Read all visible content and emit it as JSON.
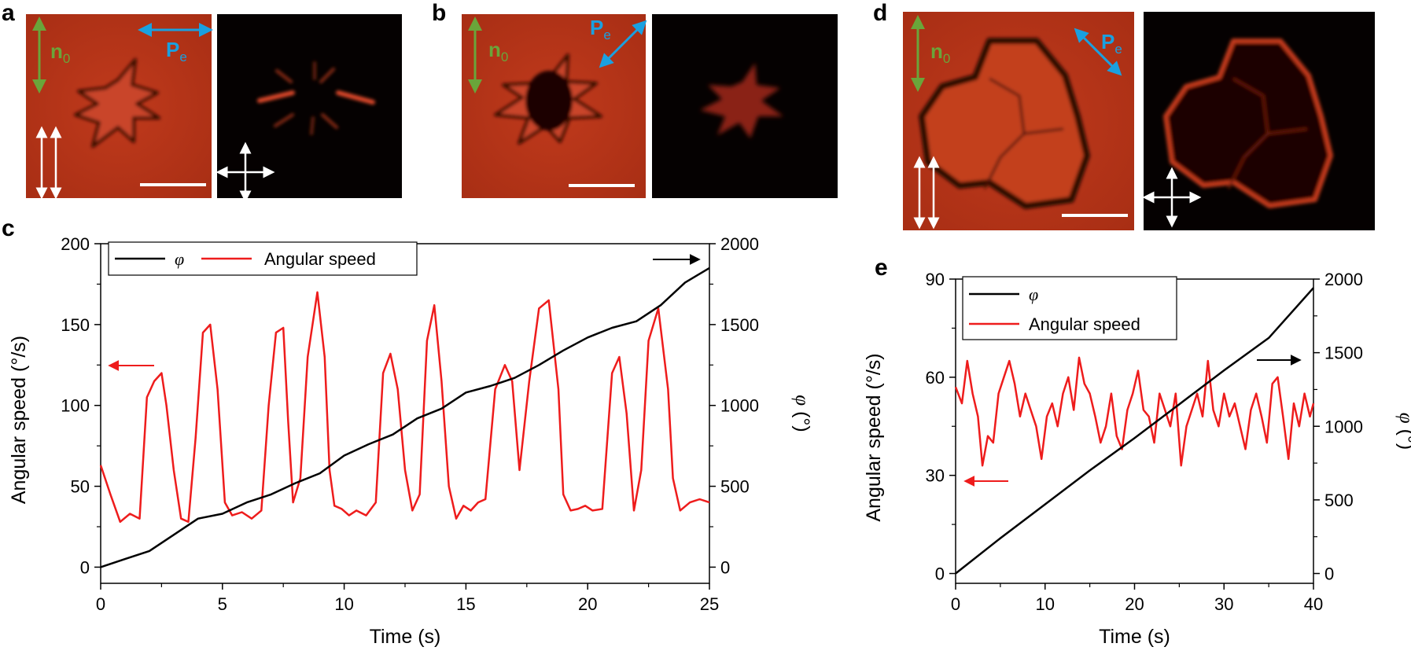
{
  "panels": {
    "a": "a",
    "b": "b",
    "c": "c",
    "d": "d",
    "e": "e"
  },
  "micrographs": {
    "n0_label": "n",
    "n0_sub": "0",
    "pe_label": "P",
    "pe_sub": "e"
  },
  "colors": {
    "red_field": "#b83418",
    "dark_field": "#050101",
    "green_arrow": "#6aa53a",
    "blue_arrow": "#1aa0e0",
    "angular_speed": "#ee1c1c",
    "phi": "#000000"
  },
  "chart_data": [
    {
      "id": "c",
      "type": "line",
      "xlabel": "Time (s)",
      "ylabel_left": "Angular speed (°/s)",
      "ylabel_right_symbol": "φ",
      "ylabel_right_unit": " (°)",
      "xlim": [
        0,
        25
      ],
      "ylim_left": [
        -10,
        200
      ],
      "ylim_right": [
        -100,
        2000
      ],
      "xticks": [
        0,
        5,
        10,
        15,
        20,
        25
      ],
      "yticks_left": [
        0,
        50,
        100,
        150,
        200
      ],
      "yticks_right": [
        0,
        500,
        1000,
        1500,
        2000
      ],
      "legend": [
        "φ",
        "Angular speed"
      ],
      "series": [
        {
          "name": "Angular speed",
          "axis": "left",
          "x": [
            0,
            0.4,
            0.8,
            1.2,
            1.6,
            1.9,
            2.2,
            2.5,
            2.7,
            3.0,
            3.3,
            3.6,
            3.9,
            4.2,
            4.5,
            4.8,
            5.1,
            5.4,
            5.8,
            6.2,
            6.6,
            6.9,
            7.2,
            7.5,
            7.7,
            7.9,
            8.2,
            8.5,
            8.9,
            9.2,
            9.4,
            9.6,
            9.9,
            10.2,
            10.5,
            10.9,
            11.3,
            11.6,
            11.9,
            12.2,
            12.5,
            12.8,
            13.1,
            13.4,
            13.7,
            14.0,
            14.3,
            14.6,
            14.9,
            15.2,
            15.5,
            15.8,
            16.2,
            16.6,
            16.9,
            17.2,
            17.6,
            18.0,
            18.4,
            18.8,
            19.0,
            19.3,
            19.6,
            19.9,
            20.2,
            20.6,
            21.0,
            21.3,
            21.6,
            21.9,
            22.2,
            22.5,
            22.9,
            23.3,
            23.5,
            23.8,
            24.2,
            24.6,
            25.0
          ],
          "values": [
            63,
            45,
            28,
            33,
            30,
            105,
            115,
            120,
            100,
            60,
            30,
            28,
            80,
            145,
            150,
            110,
            40,
            32,
            34,
            30,
            35,
            100,
            145,
            148,
            90,
            40,
            55,
            130,
            170,
            130,
            60,
            38,
            36,
            32,
            35,
            32,
            40,
            120,
            132,
            110,
            60,
            35,
            45,
            140,
            162,
            115,
            50,
            30,
            38,
            35,
            40,
            42,
            110,
            125,
            115,
            60,
            115,
            160,
            165,
            110,
            45,
            35,
            36,
            38,
            35,
            36,
            120,
            130,
            95,
            35,
            60,
            140,
            160,
            110,
            55,
            35,
            40,
            42,
            40
          ]
        },
        {
          "name": "φ",
          "axis": "right",
          "x": [
            0,
            1,
            2,
            3,
            4,
            5,
            6,
            7,
            8,
            9,
            10,
            11,
            12,
            13,
            14,
            15,
            16,
            17,
            18,
            19,
            20,
            21,
            22,
            23,
            24,
            25
          ],
          "values": [
            0,
            50,
            100,
            200,
            300,
            330,
            400,
            450,
            520,
            580,
            690,
            760,
            820,
            920,
            980,
            1080,
            1120,
            1170,
            1250,
            1340,
            1420,
            1480,
            1520,
            1620,
            1760,
            1850
          ]
        }
      ]
    },
    {
      "id": "e",
      "type": "line",
      "xlabel": "Time (s)",
      "ylabel_left": "Angular speed (°/s)",
      "ylabel_right_symbol": "φ",
      "ylabel_right_unit": " (°)",
      "xlim": [
        0,
        40
      ],
      "ylim_left": [
        -3,
        90
      ],
      "ylim_right": [
        -66.7,
        2000
      ],
      "xticks": [
        0,
        10,
        20,
        30,
        40
      ],
      "yticks_left": [
        0,
        30,
        60,
        90
      ],
      "yticks_right": [
        0,
        500,
        1000,
        1500,
        2000
      ],
      "legend": [
        "φ",
        "Angular speed"
      ],
      "series": [
        {
          "name": "Angular speed",
          "axis": "left",
          "x": [
            0,
            0.7,
            1.3,
            1.9,
            2.5,
            3.0,
            3.6,
            4.2,
            4.8,
            5.4,
            6.0,
            6.6,
            7.2,
            7.8,
            8.4,
            9.0,
            9.6,
            10.2,
            10.8,
            11.4,
            12.0,
            12.6,
            13.2,
            13.8,
            14.4,
            15.0,
            15.6,
            16.2,
            16.8,
            17.4,
            18.0,
            18.6,
            19.2,
            19.8,
            20.4,
            21.0,
            21.6,
            22.2,
            22.8,
            23.4,
            24.0,
            24.6,
            25.2,
            25.8,
            26.4,
            27.0,
            27.6,
            28.2,
            28.8,
            29.4,
            30.0,
            30.6,
            31.2,
            31.8,
            32.4,
            33.0,
            33.6,
            34.2,
            34.8,
            35.4,
            36.0,
            36.6,
            37.2,
            37.8,
            38.4,
            39.0,
            39.6,
            40.0
          ],
          "values": [
            57,
            52,
            65,
            55,
            48,
            33,
            42,
            40,
            55,
            60,
            65,
            58,
            48,
            55,
            50,
            45,
            35,
            48,
            52,
            45,
            55,
            60,
            50,
            66,
            58,
            55,
            48,
            40,
            45,
            55,
            42,
            38,
            50,
            55,
            62,
            50,
            48,
            40,
            55,
            50,
            45,
            55,
            33,
            45,
            50,
            55,
            48,
            65,
            50,
            45,
            55,
            48,
            52,
            45,
            38,
            50,
            55,
            48,
            40,
            58,
            60,
            48,
            35,
            52,
            45,
            55,
            48,
            52
          ]
        },
        {
          "name": "φ",
          "axis": "right",
          "x": [
            0,
            5,
            10,
            15,
            20,
            25,
            30,
            35,
            40
          ],
          "values": [
            0,
            240,
            470,
            700,
            920,
            1150,
            1380,
            1600,
            1940
          ]
        }
      ]
    }
  ]
}
